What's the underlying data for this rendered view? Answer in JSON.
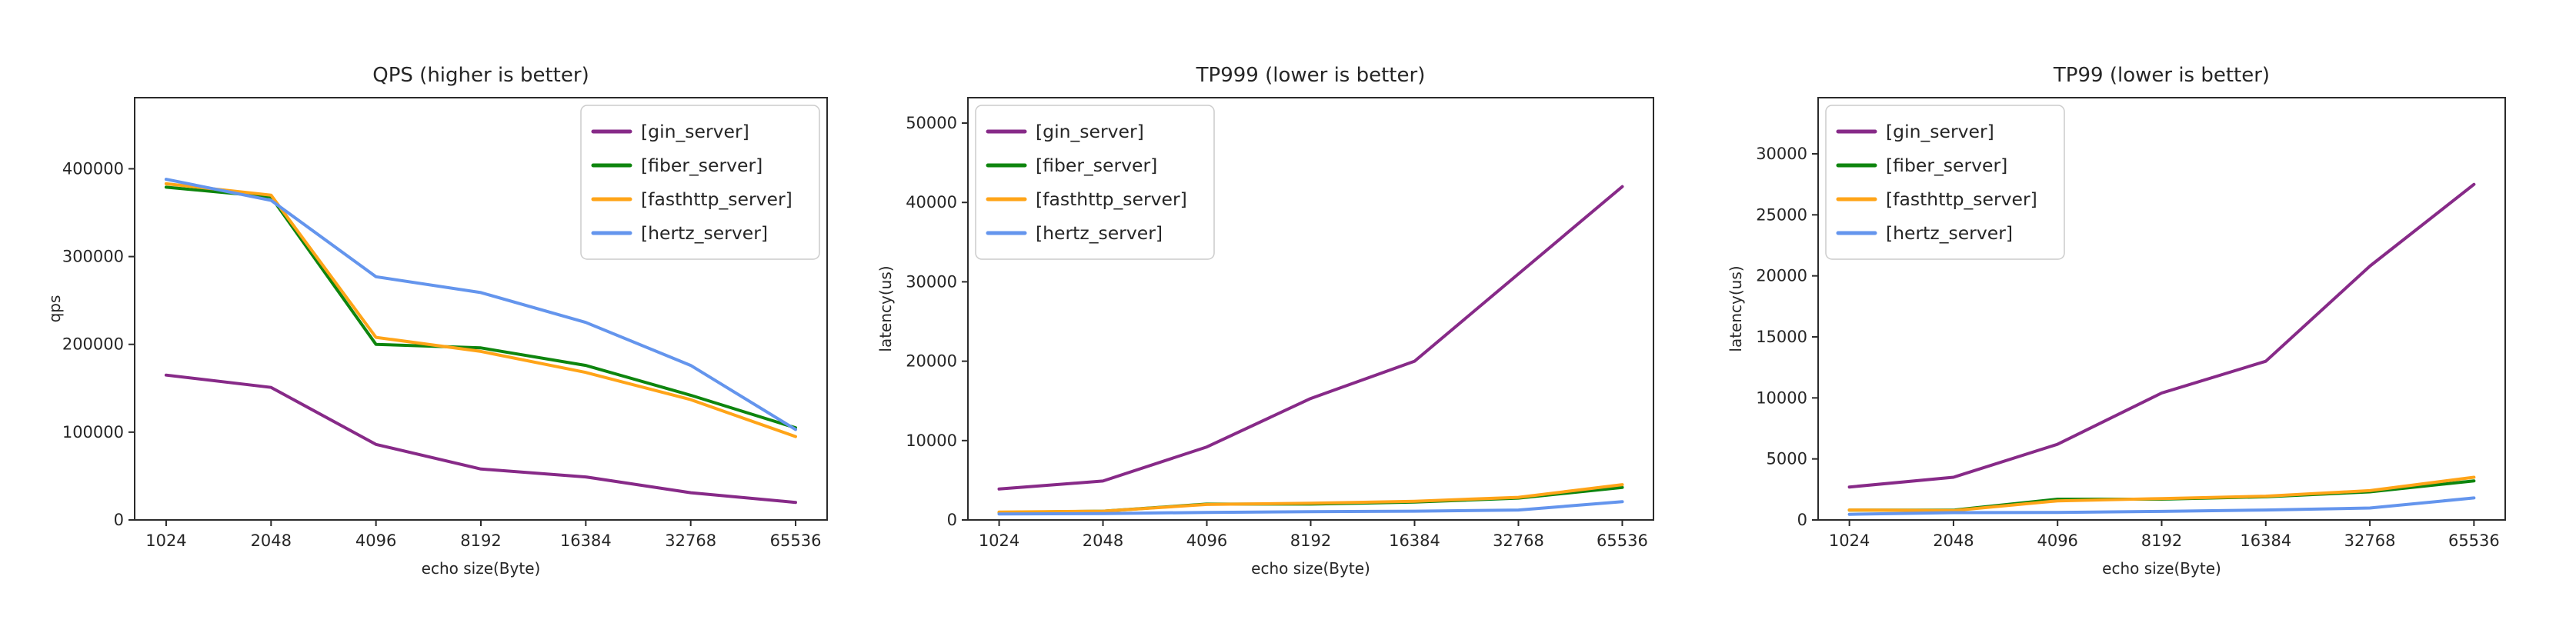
{
  "figure": {
    "background": "#ffffff",
    "description": "Go web-server echo benchmark comparison: QPS, TP999 latency and TP99 latency versus echo payload size"
  },
  "chart_data": [
    {
      "type": "line",
      "title": "QPS (higher is better)",
      "xlabel": "echo size(Byte)",
      "ylabel": "qps",
      "categories": [
        "1024",
        "2048",
        "4096",
        "8192",
        "16384",
        "32768",
        "65536"
      ],
      "yticks": [
        0,
        100000,
        200000,
        300000,
        400000
      ],
      "ylim": [
        0,
        481000
      ],
      "grid": false,
      "legend_position": "top-right",
      "series": [
        {
          "name": "[gin_server]",
          "color": "#872a88",
          "values": [
            165000,
            151000,
            86000,
            58000,
            49000,
            31000,
            20000
          ]
        },
        {
          "name": "[fiber_server]",
          "color": "#0e850e",
          "values": [
            379000,
            368000,
            200000,
            196000,
            176000,
            142000,
            105000
          ]
        },
        {
          "name": "[fasthttp_server]",
          "color": "#ffa418",
          "values": [
            383000,
            370000,
            208000,
            192000,
            168000,
            137000,
            95000
          ]
        },
        {
          "name": "[hertz_server]",
          "color": "#6495ed",
          "values": [
            388000,
            364000,
            277000,
            259000,
            225000,
            176000,
            103000
          ]
        }
      ]
    },
    {
      "type": "line",
      "title": "TP999 (lower is better)",
      "xlabel": "echo size(Byte)",
      "ylabel": "latency(us)",
      "categories": [
        "1024",
        "2048",
        "4096",
        "8192",
        "16384",
        "32768",
        "65536"
      ],
      "yticks": [
        0,
        10000,
        20000,
        30000,
        40000,
        50000
      ],
      "ylim": [
        0,
        53200
      ],
      "grid": false,
      "legend_position": "top-left",
      "series": [
        {
          "name": "[gin_server]",
          "color": "#872a88",
          "values": [
            3900,
            4900,
            9200,
            15300,
            20000,
            31000,
            42000
          ]
        },
        {
          "name": "[fiber_server]",
          "color": "#0e850e",
          "values": [
            950,
            1100,
            2000,
            2000,
            2250,
            2750,
            4100
          ]
        },
        {
          "name": "[fasthttp_server]",
          "color": "#ffa418",
          "values": [
            1000,
            1100,
            1950,
            2100,
            2350,
            2850,
            4450
          ]
        },
        {
          "name": "[hertz_server]",
          "color": "#6495ed",
          "values": [
            750,
            800,
            950,
            1050,
            1100,
            1250,
            2300
          ]
        }
      ]
    },
    {
      "type": "line",
      "title": "TP99 (lower is better)",
      "xlabel": "echo size(Byte)",
      "ylabel": "latency(us)",
      "categories": [
        "1024",
        "2048",
        "4096",
        "8192",
        "16384",
        "32768",
        "65536"
      ],
      "yticks": [
        0,
        5000,
        10000,
        15000,
        20000,
        25000,
        30000
      ],
      "ylim": [
        0,
        34600
      ],
      "grid": false,
      "legend_position": "top-left",
      "series": [
        {
          "name": "[gin_server]",
          "color": "#872a88",
          "values": [
            2700,
            3500,
            6200,
            10400,
            13000,
            20800,
            27500
          ]
        },
        {
          "name": "[fiber_server]",
          "color": "#0e850e",
          "values": [
            800,
            800,
            1700,
            1700,
            1900,
            2300,
            3200
          ]
        },
        {
          "name": "[fasthttp_server]",
          "color": "#ffa418",
          "values": [
            810,
            770,
            1560,
            1750,
            1950,
            2400,
            3500
          ]
        },
        {
          "name": "[hertz_server]",
          "color": "#6495ed",
          "values": [
            460,
            600,
            620,
            700,
            810,
            980,
            1800
          ]
        }
      ]
    }
  ]
}
